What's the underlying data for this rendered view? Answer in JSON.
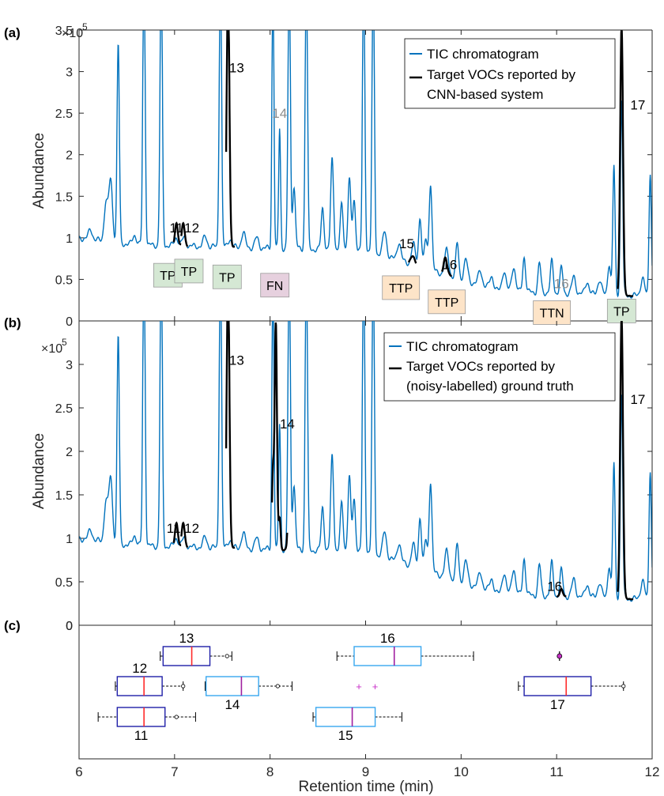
{
  "colors": {
    "tic": "#0072BD",
    "target": "#000000",
    "tp": "#d5e8d4",
    "fn": "#e6d0de",
    "ttp": "#fde4c8",
    "ttn": "#fde4c8",
    "box_dark": "#1f1fa8",
    "box_light": "#38a7f0",
    "median_red": "#ff2a2a",
    "median_purple": "#a020a0",
    "outlier_purple": "#c830c8"
  },
  "xlabel": "Retention time (min)",
  "xlim": [
    6,
    12
  ],
  "xticks": [
    "6",
    "7",
    "8",
    "9",
    "10",
    "11",
    "12"
  ],
  "chart_data": [
    {
      "panel": "(a)",
      "type": "line",
      "ylabel": "Abundance",
      "exponent_label": "×10",
      "exponent_power": "5",
      "ylim": [
        0,
        3.5
      ],
      "yticks": [
        "0",
        "0.5",
        "1",
        "1.5",
        "2",
        "2.5",
        "3",
        "3.5"
      ],
      "legend": [
        "TIC chromatogram",
        "Target VOCs reported by",
        "CNN-based system"
      ],
      "peaks": [
        {
          "label": "11",
          "x": 7.02,
          "y": 1.12,
          "grey": false
        },
        {
          "label": "12",
          "x": 7.18,
          "y": 1.12,
          "grey": false
        },
        {
          "label": "13",
          "x": 7.65,
          "y": 3.05,
          "grey": false
        },
        {
          "label": "14",
          "x": 8.1,
          "y": 2.5,
          "grey": true
        },
        {
          "label": "15",
          "x": 9.43,
          "y": 0.93,
          "grey": false
        },
        {
          "label": "16",
          "x": 9.88,
          "y": 0.68,
          "grey": false
        },
        {
          "label": "16",
          "x": 11.05,
          "y": 0.45,
          "grey": true
        },
        {
          "label": "17",
          "x": 11.85,
          "y": 2.6,
          "grey": false
        }
      ],
      "tags": [
        {
          "text": "TP",
          "x": 6.93,
          "y": 0.55,
          "kind": "tp"
        },
        {
          "text": "TP",
          "x": 7.15,
          "y": 0.6,
          "kind": "tp"
        },
        {
          "text": "TP",
          "x": 7.55,
          "y": 0.53,
          "kind": "tp"
        },
        {
          "text": "FN",
          "x": 8.05,
          "y": 0.43,
          "kind": "fn"
        },
        {
          "text": "TTP",
          "x": 9.37,
          "y": 0.4,
          "kind": "ttp"
        },
        {
          "text": "TTP",
          "x": 9.85,
          "y": 0.23,
          "kind": "ttp"
        },
        {
          "text": "TTN",
          "x": 10.95,
          "y": 0.1,
          "kind": "ttn"
        },
        {
          "text": "TP",
          "x": 11.68,
          "y": 0.12,
          "kind": "tp"
        }
      ]
    },
    {
      "panel": "(b)",
      "type": "line",
      "ylabel": "Abundance",
      "exponent_label": "×10",
      "exponent_power": "5",
      "ylim": [
        0,
        3.5
      ],
      "yticks": [
        "0",
        "0.5",
        "1",
        "1.5",
        "2",
        "2.5",
        "3"
      ],
      "legend": [
        "TIC chromatogram",
        "Target VOCs reported by",
        "(noisy-labelled) ground truth"
      ],
      "peaks": [
        {
          "label": "11",
          "x": 6.99,
          "y": 1.12,
          "grey": false
        },
        {
          "label": "12",
          "x": 7.18,
          "y": 1.12,
          "grey": false
        },
        {
          "label": "13",
          "x": 7.65,
          "y": 3.05,
          "grey": false
        },
        {
          "label": "14",
          "x": 8.18,
          "y": 2.32,
          "grey": false
        },
        {
          "label": "16",
          "x": 10.98,
          "y": 0.45,
          "grey": false
        },
        {
          "label": "17",
          "x": 11.85,
          "y": 2.6,
          "grey": false
        }
      ]
    },
    {
      "panel": "(c)",
      "type": "box",
      "rows": 3,
      "boxes": [
        {
          "label": "13",
          "row": 0,
          "min": 6.85,
          "q1": 6.88,
          "median": 7.18,
          "q3": 7.37,
          "max": 7.6,
          "outliers": [
            7.55
          ],
          "color": "dark",
          "median_color": "red",
          "label_pos": "above"
        },
        {
          "label": "16",
          "row": 0,
          "min": 8.7,
          "q1": 8.88,
          "median": 9.3,
          "q3": 9.58,
          "max": 10.13,
          "outliers": [],
          "color": "light",
          "median_color": "purple",
          "label_pos": "above"
        },
        {
          "label": "",
          "row": 0,
          "min": 11.03,
          "q1": 11.03,
          "median": 11.03,
          "q3": 11.03,
          "max": 11.03,
          "outliers": [
            11.03
          ],
          "color": "dark",
          "median_color": "purple",
          "label_pos": "none"
        },
        {
          "label": "12",
          "row": 1,
          "min": 6.38,
          "q1": 6.4,
          "median": 6.68,
          "q3": 6.87,
          "max": 7.09,
          "outliers": [
            7.09
          ],
          "color": "dark",
          "median_color": "red",
          "label_pos": "above"
        },
        {
          "label": "14",
          "row": 1,
          "min": 7.32,
          "q1": 7.33,
          "median": 7.7,
          "q3": 7.88,
          "max": 8.23,
          "outliers": [
            8.08
          ],
          "color": "light",
          "median_color": "purple",
          "label_pos": "below"
        },
        {
          "label": "",
          "row": 1,
          "min": 8.93,
          "q1": 8.93,
          "median": 8.93,
          "q3": 8.93,
          "max": 8.93,
          "outliers": [
            8.93,
            9.1
          ],
          "color": "none",
          "median_color": "purple",
          "label_pos": "none"
        },
        {
          "label": "17",
          "row": 1,
          "min": 10.6,
          "q1": 10.66,
          "median": 11.1,
          "q3": 11.36,
          "max": 11.7,
          "outliers": [
            11.7
          ],
          "color": "dark",
          "median_color": "red",
          "label_pos": "below"
        },
        {
          "label": "11",
          "row": 2,
          "min": 6.2,
          "q1": 6.4,
          "median": 6.68,
          "q3": 6.9,
          "max": 7.22,
          "outliers": [
            7.02
          ],
          "color": "dark",
          "median_color": "red",
          "label_pos": "below"
        },
        {
          "label": "15",
          "row": 2,
          "min": 8.45,
          "q1": 8.48,
          "median": 8.86,
          "q3": 9.1,
          "max": 9.38,
          "outliers": [],
          "color": "light",
          "median_color": "purple",
          "label_pos": "below"
        }
      ]
    }
  ]
}
